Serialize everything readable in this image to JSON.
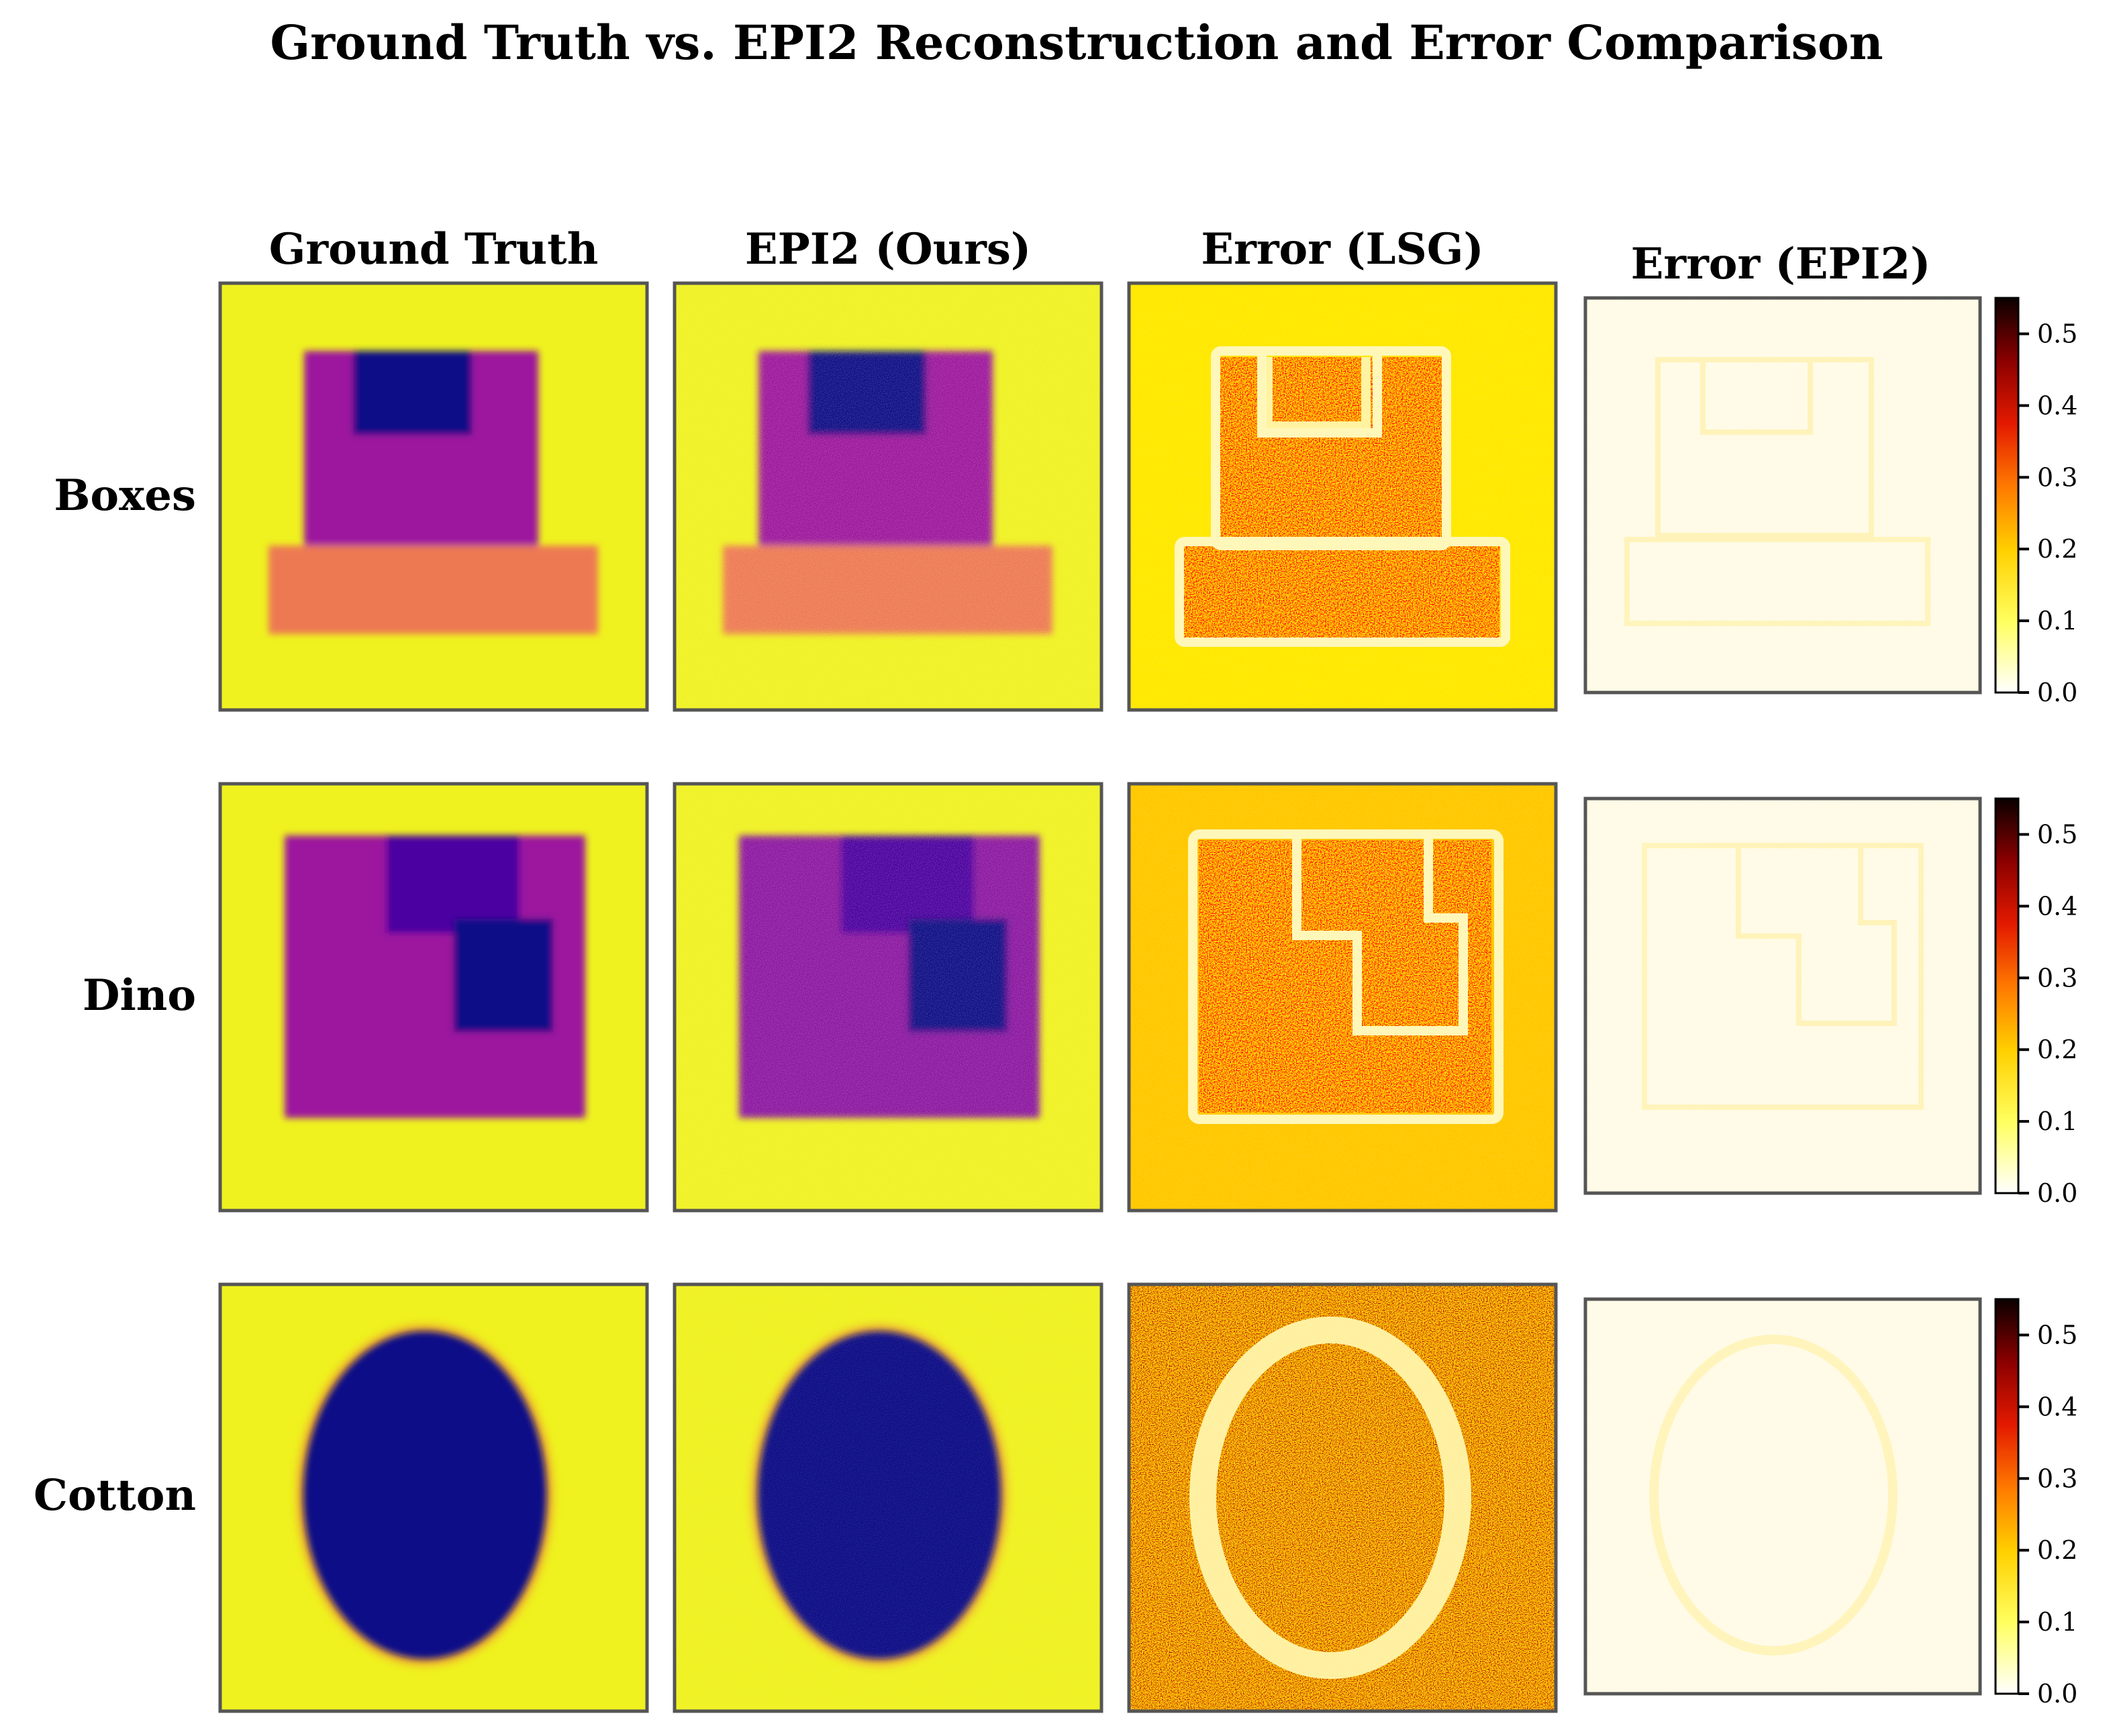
{
  "figure": {
    "title": "Ground Truth vs. EPI2 Reconstruction and Error Comparison"
  },
  "chart_data": {
    "type": "heatmap",
    "title": "Ground Truth vs. EPI2 Reconstruction and Error Comparison",
    "columns": [
      "Ground Truth",
      "EPI2 (Ours)",
      "Error (LSG)",
      "Error (EPI2)"
    ],
    "rows": [
      "Boxes",
      "Dino",
      "Cotton"
    ],
    "colormaps": {
      "image": "plasma",
      "error": "hot_r"
    },
    "colorbar": {
      "ticks": [
        "0.0",
        "0.1",
        "0.2",
        "0.3",
        "0.4",
        "0.5"
      ],
      "range": [
        0.0,
        0.55
      ]
    },
    "colors": {
      "background_yellow": "#eff21f",
      "purple": "#9c179e",
      "dark_blue": "#0d0887",
      "indigo": "#4c02a1",
      "orange": "#ed7953",
      "error_bg_yellow": "#ffe800",
      "error_bg_orange": "#ffc800",
      "frame": "#555555"
    }
  }
}
